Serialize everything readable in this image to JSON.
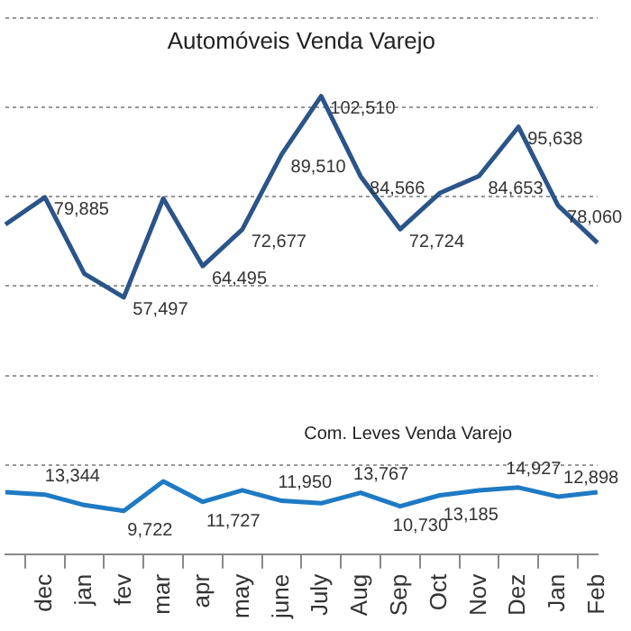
{
  "chart_data": {
    "type": "line",
    "categories": [
      null,
      "dec",
      "jan",
      "fev",
      "mar",
      "apr",
      "may",
      "june",
      "July",
      "Aug",
      "Sep",
      "Oct",
      "Nov",
      "Dez",
      "Jan",
      "Feb"
    ],
    "series": [
      {
        "name": "Automóveis Venda Varejo",
        "color": "#2b5489",
        "values": [
          73800,
          79885,
          62800,
          57497,
          79600,
          64495,
          72677,
          89510,
          102510,
          84566,
          72724,
          80800,
          84653,
          95638,
          78060,
          69700
        ],
        "value_labels": [
          null,
          "79,885",
          null,
          "57,497",
          null,
          "64,495",
          "72,677",
          "89,510",
          "102,510",
          "84,566",
          "72,724",
          null,
          "84,653",
          "95,638",
          "78,060",
          null
        ]
      },
      {
        "name": "Com. Leves Venda Varejo",
        "color": "#1f7ac4",
        "values": [
          13900,
          13344,
          11000,
          9722,
          16300,
          11727,
          14300,
          11950,
          11400,
          13767,
          10730,
          13185,
          14300,
          14927,
          12898,
          13900
        ],
        "value_labels": [
          null,
          "13,344",
          null,
          "9,722",
          null,
          "11,727",
          null,
          "11,950",
          null,
          "13,767",
          "10,730",
          "13,185",
          null,
          "14,927",
          "12,898",
          null
        ]
      }
    ],
    "ylim": [
      0,
      120000
    ],
    "yticks": [
      {
        "value": 0,
        "label": null
      },
      {
        "value": 20000,
        "label": null
      },
      {
        "value": 40000,
        "label": null
      },
      {
        "value": 60000,
        "label": null
      },
      {
        "value": 80000,
        "label": null
      },
      {
        "value": 100000,
        "label": null
      },
      {
        "value": 120000,
        "label": null
      }
    ],
    "tick_labels": "x",
    "grid": "y",
    "legend": false,
    "marker": "none",
    "line_style": "solid"
  }
}
